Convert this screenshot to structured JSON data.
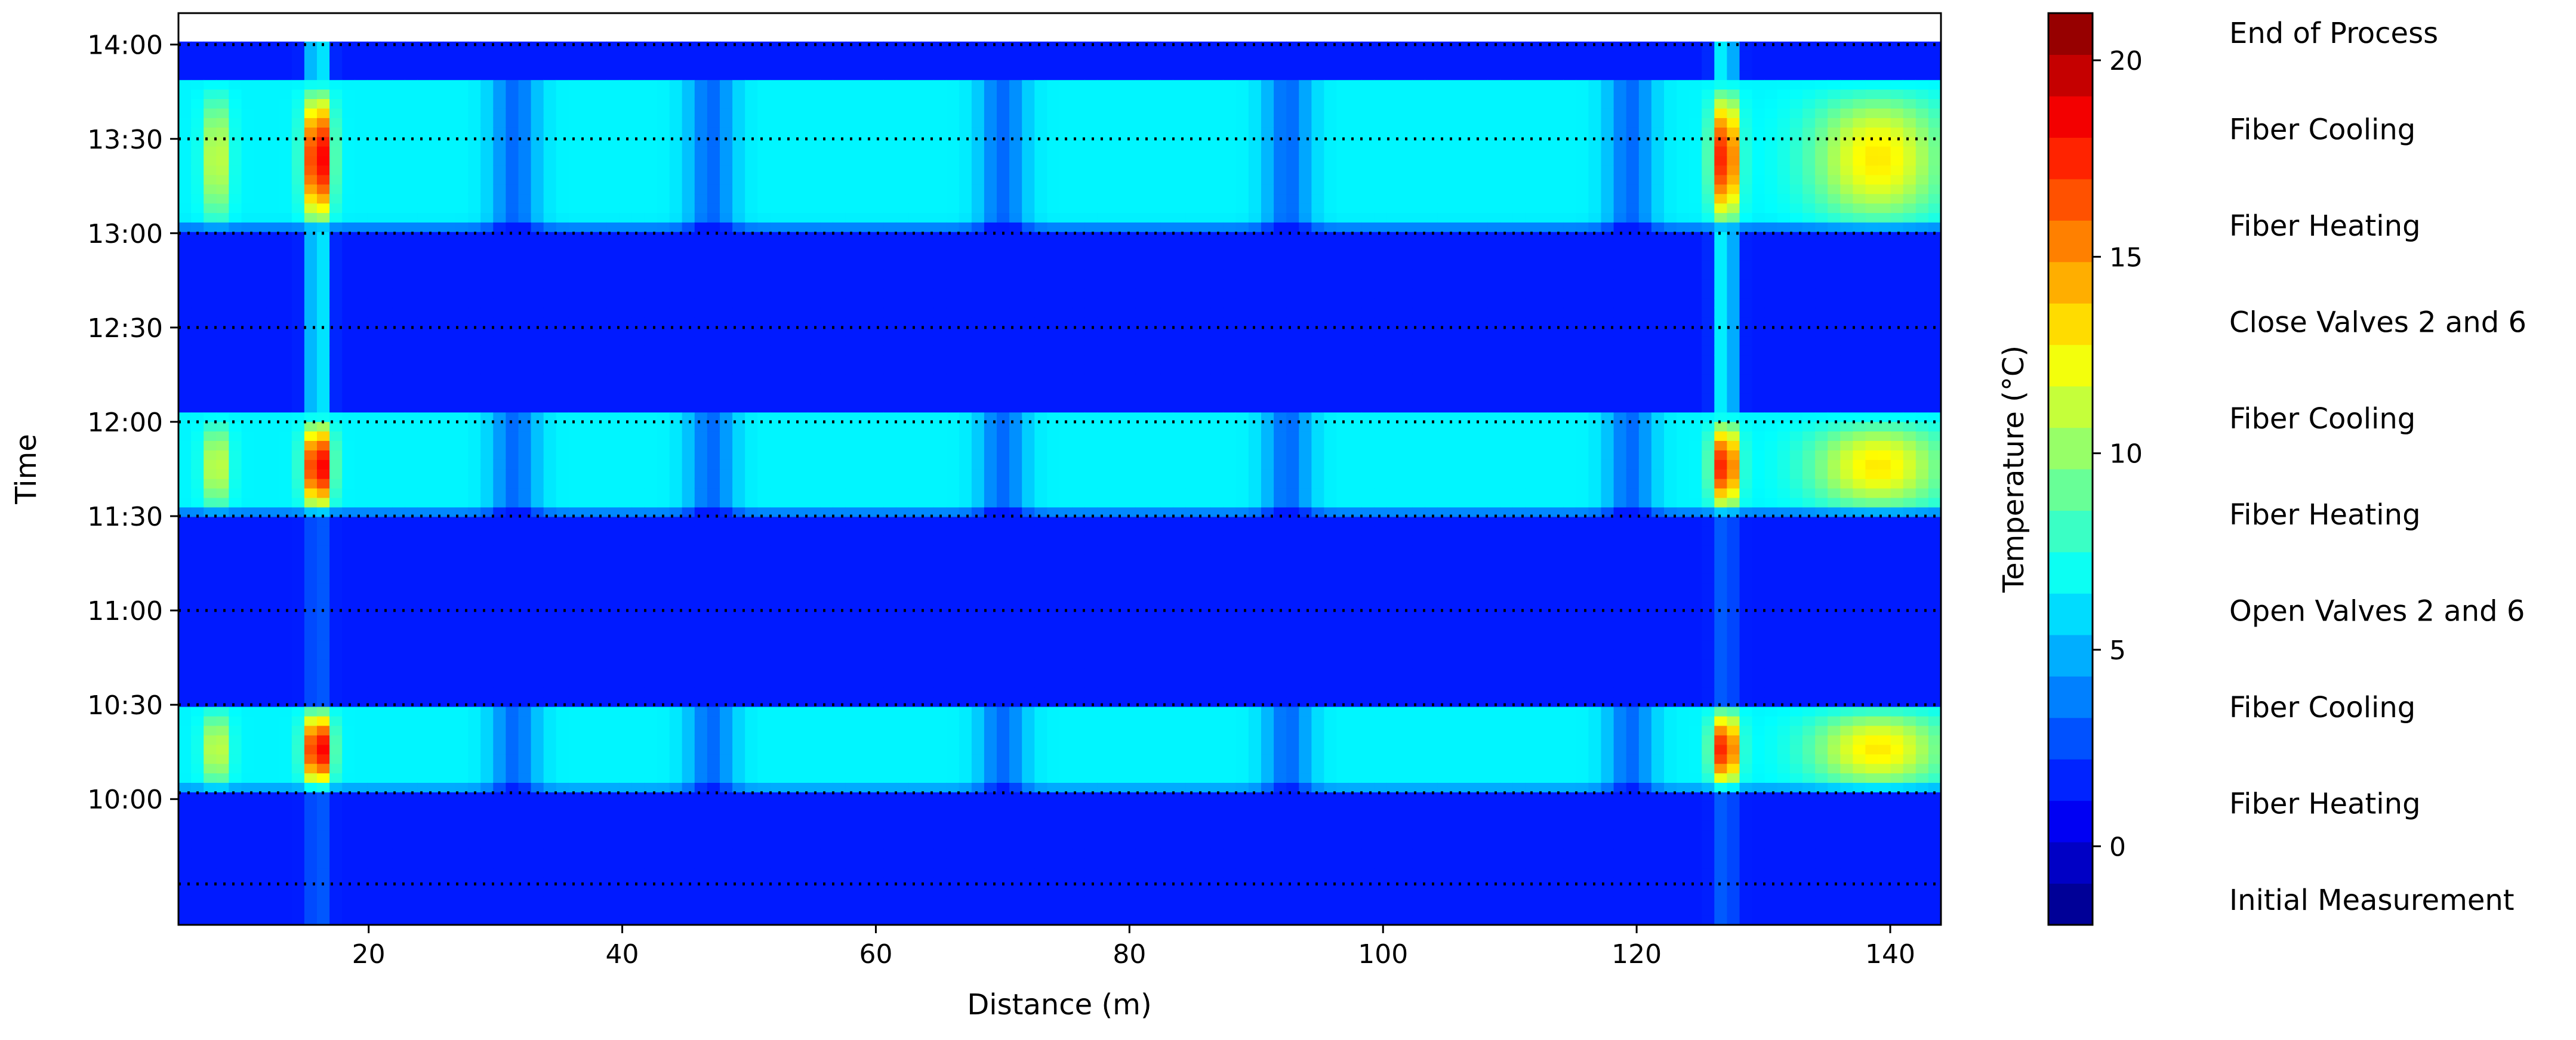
{
  "chart_data": {
    "type": "heatmap",
    "xlabel": "Distance (m)",
    "ylabel": "Time",
    "xlim": [
      5,
      144
    ],
    "x_ticks": [
      20,
      40,
      60,
      80,
      100,
      120,
      140
    ],
    "y_ticks": [
      "10:00",
      "10:30",
      "11:00",
      "11:30",
      "12:00",
      "12:30",
      "13:00",
      "13:30",
      "14:00"
    ],
    "colorbar": {
      "label": "Temperature (°C)",
      "range": [
        -2,
        21.2
      ],
      "ticks": [
        0,
        5,
        10,
        15,
        20
      ],
      "colormap": "jet"
    },
    "event_times": [
      "09:33",
      "10:02",
      "10:30",
      "11:00",
      "11:30",
      "12:00",
      "12:30",
      "13:00",
      "13:30",
      "14:00"
    ],
    "event_labels": [
      "End of Process",
      "Fiber Cooling",
      "Fiber Heating",
      "Close Valves 2 and 6",
      "Fiber Cooling",
      "Fiber Heating",
      "Open Valves 2 and 6",
      "Fiber Cooling",
      "Fiber Heating",
      "Initial Measurement"
    ],
    "heating_periods": [
      {
        "start": "10:02",
        "end": "10:30",
        "base_temp": 6.5
      },
      {
        "start": "11:30",
        "end": "12:02",
        "base_temp": 6.5
      },
      {
        "start": "13:00",
        "end": "13:48",
        "base_temp": 6.5
      }
    ],
    "baseline_temp": 1.5,
    "hot_spots": [
      {
        "x": 8,
        "peak_temp": 12
      },
      {
        "x": 16,
        "peak_temp": 20.5
      },
      {
        "x": 127,
        "peak_temp": 19
      },
      {
        "x": 139,
        "peak_temp": 13
      }
    ],
    "cool_bands": [
      31.5,
      47,
      70,
      92.5,
      119.5
    ]
  }
}
